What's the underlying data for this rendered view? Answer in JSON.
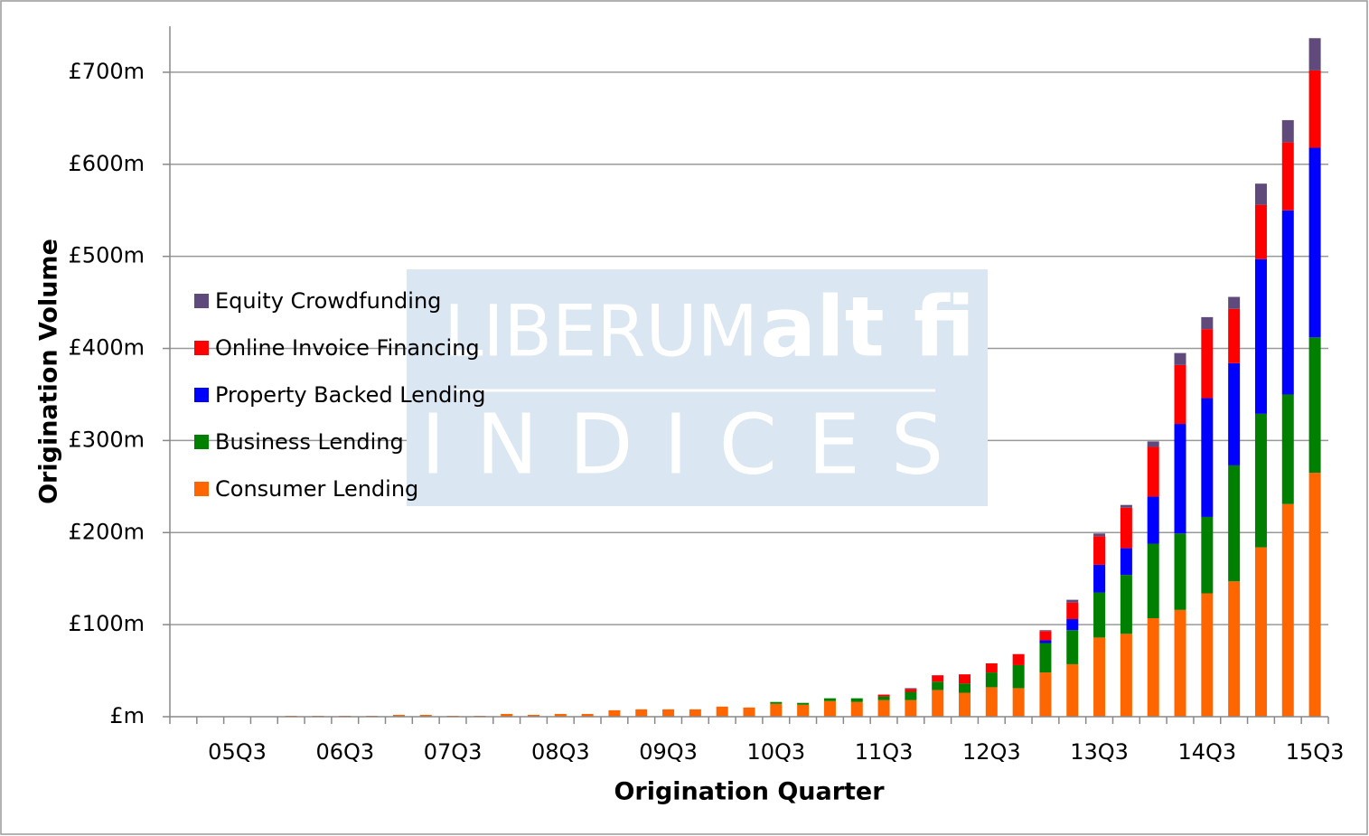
{
  "chart_data": {
    "type": "stacked_bar",
    "xlabel": "Origination Quarter",
    "ylabel": "Origination Volume",
    "watermark": {
      "brand": "LIBERUM",
      "logo": "alt fi",
      "product": "INDICES"
    },
    "legend": "left",
    "grid": true,
    "categories": [
      null,
      null,
      "05Q3",
      null,
      null,
      null,
      "06Q3",
      null,
      null,
      null,
      "07Q3",
      null,
      null,
      null,
      "08Q3",
      null,
      null,
      null,
      "09Q3",
      null,
      null,
      null,
      "10Q3",
      null,
      null,
      null,
      "11Q3",
      null,
      null,
      null,
      "12Q3",
      null,
      null,
      null,
      "13Q3",
      null,
      null,
      null,
      "14Q3",
      null,
      null,
      null,
      "15Q3"
    ],
    "ylim": [
      0,
      750
    ],
    "yticks": [
      {
        "value": 0,
        "label": "£m"
      },
      {
        "value": 100,
        "label": "£100m"
      },
      {
        "value": 200,
        "label": "£200m"
      },
      {
        "value": 300,
        "label": "£300m"
      },
      {
        "value": 400,
        "label": "£400m"
      },
      {
        "value": 500,
        "label": "£500m"
      },
      {
        "value": 600,
        "label": "£600m"
      },
      {
        "value": 700,
        "label": "£700m"
      }
    ],
    "series": [
      {
        "name": "Consumer Lending",
        "color": "#ff6600",
        "values": [
          0,
          0,
          0,
          0,
          1,
          1,
          1,
          1,
          2,
          2,
          1,
          1,
          3,
          2,
          3,
          3,
          7,
          8,
          8,
          8,
          11,
          10,
          14,
          13,
          17,
          16,
          18,
          18,
          29,
          26,
          32,
          31,
          48,
          57,
          86,
          90,
          107,
          116,
          134,
          147,
          184,
          231,
          265
        ]
      },
      {
        "name": "Business Lending",
        "color": "#008000",
        "values": [
          0,
          0,
          0,
          0,
          0,
          0,
          0,
          0,
          0,
          0,
          0,
          0,
          0,
          0,
          0,
          0,
          0,
          0,
          0,
          0,
          0,
          0,
          2,
          2,
          3,
          4,
          4,
          9,
          9,
          10,
          16,
          25,
          32,
          37,
          49,
          64,
          81,
          83,
          83,
          126,
          145,
          119,
          147
        ]
      },
      {
        "name": "Property Backed Lending",
        "color": "#0000ff",
        "values": [
          0,
          0,
          0,
          0,
          0,
          0,
          0,
          0,
          0,
          0,
          0,
          0,
          0,
          0,
          0,
          0,
          0,
          0,
          0,
          0,
          0,
          0,
          0,
          0,
          0,
          0,
          0,
          0,
          0,
          0,
          0,
          0,
          3,
          12,
          30,
          29,
          51,
          119,
          129,
          111,
          168,
          200,
          206
        ]
      },
      {
        "name": "Online Invoice Financing",
        "color": "#ff0000",
        "values": [
          0,
          0,
          0,
          0,
          0,
          0,
          0,
          0,
          0,
          0,
          0,
          0,
          0,
          0,
          0,
          0,
          0,
          0,
          0,
          0,
          0,
          0,
          0,
          0,
          0,
          0,
          2,
          3,
          7,
          10,
          10,
          12,
          10,
          18,
          31,
          44,
          54,
          64,
          75,
          59,
          59,
          74,
          84
        ]
      },
      {
        "name": "Equity Crowdfunding",
        "color": "#604a7b",
        "values": [
          0,
          0,
          0,
          0,
          0,
          0,
          0,
          0,
          0,
          0,
          0,
          0,
          0,
          0,
          0,
          0,
          0,
          0,
          0,
          0,
          0,
          0,
          0,
          0,
          0,
          0,
          0,
          1,
          0,
          0,
          0,
          0,
          1,
          3,
          3,
          3,
          6,
          13,
          13,
          13,
          23,
          24,
          35
        ]
      }
    ]
  }
}
